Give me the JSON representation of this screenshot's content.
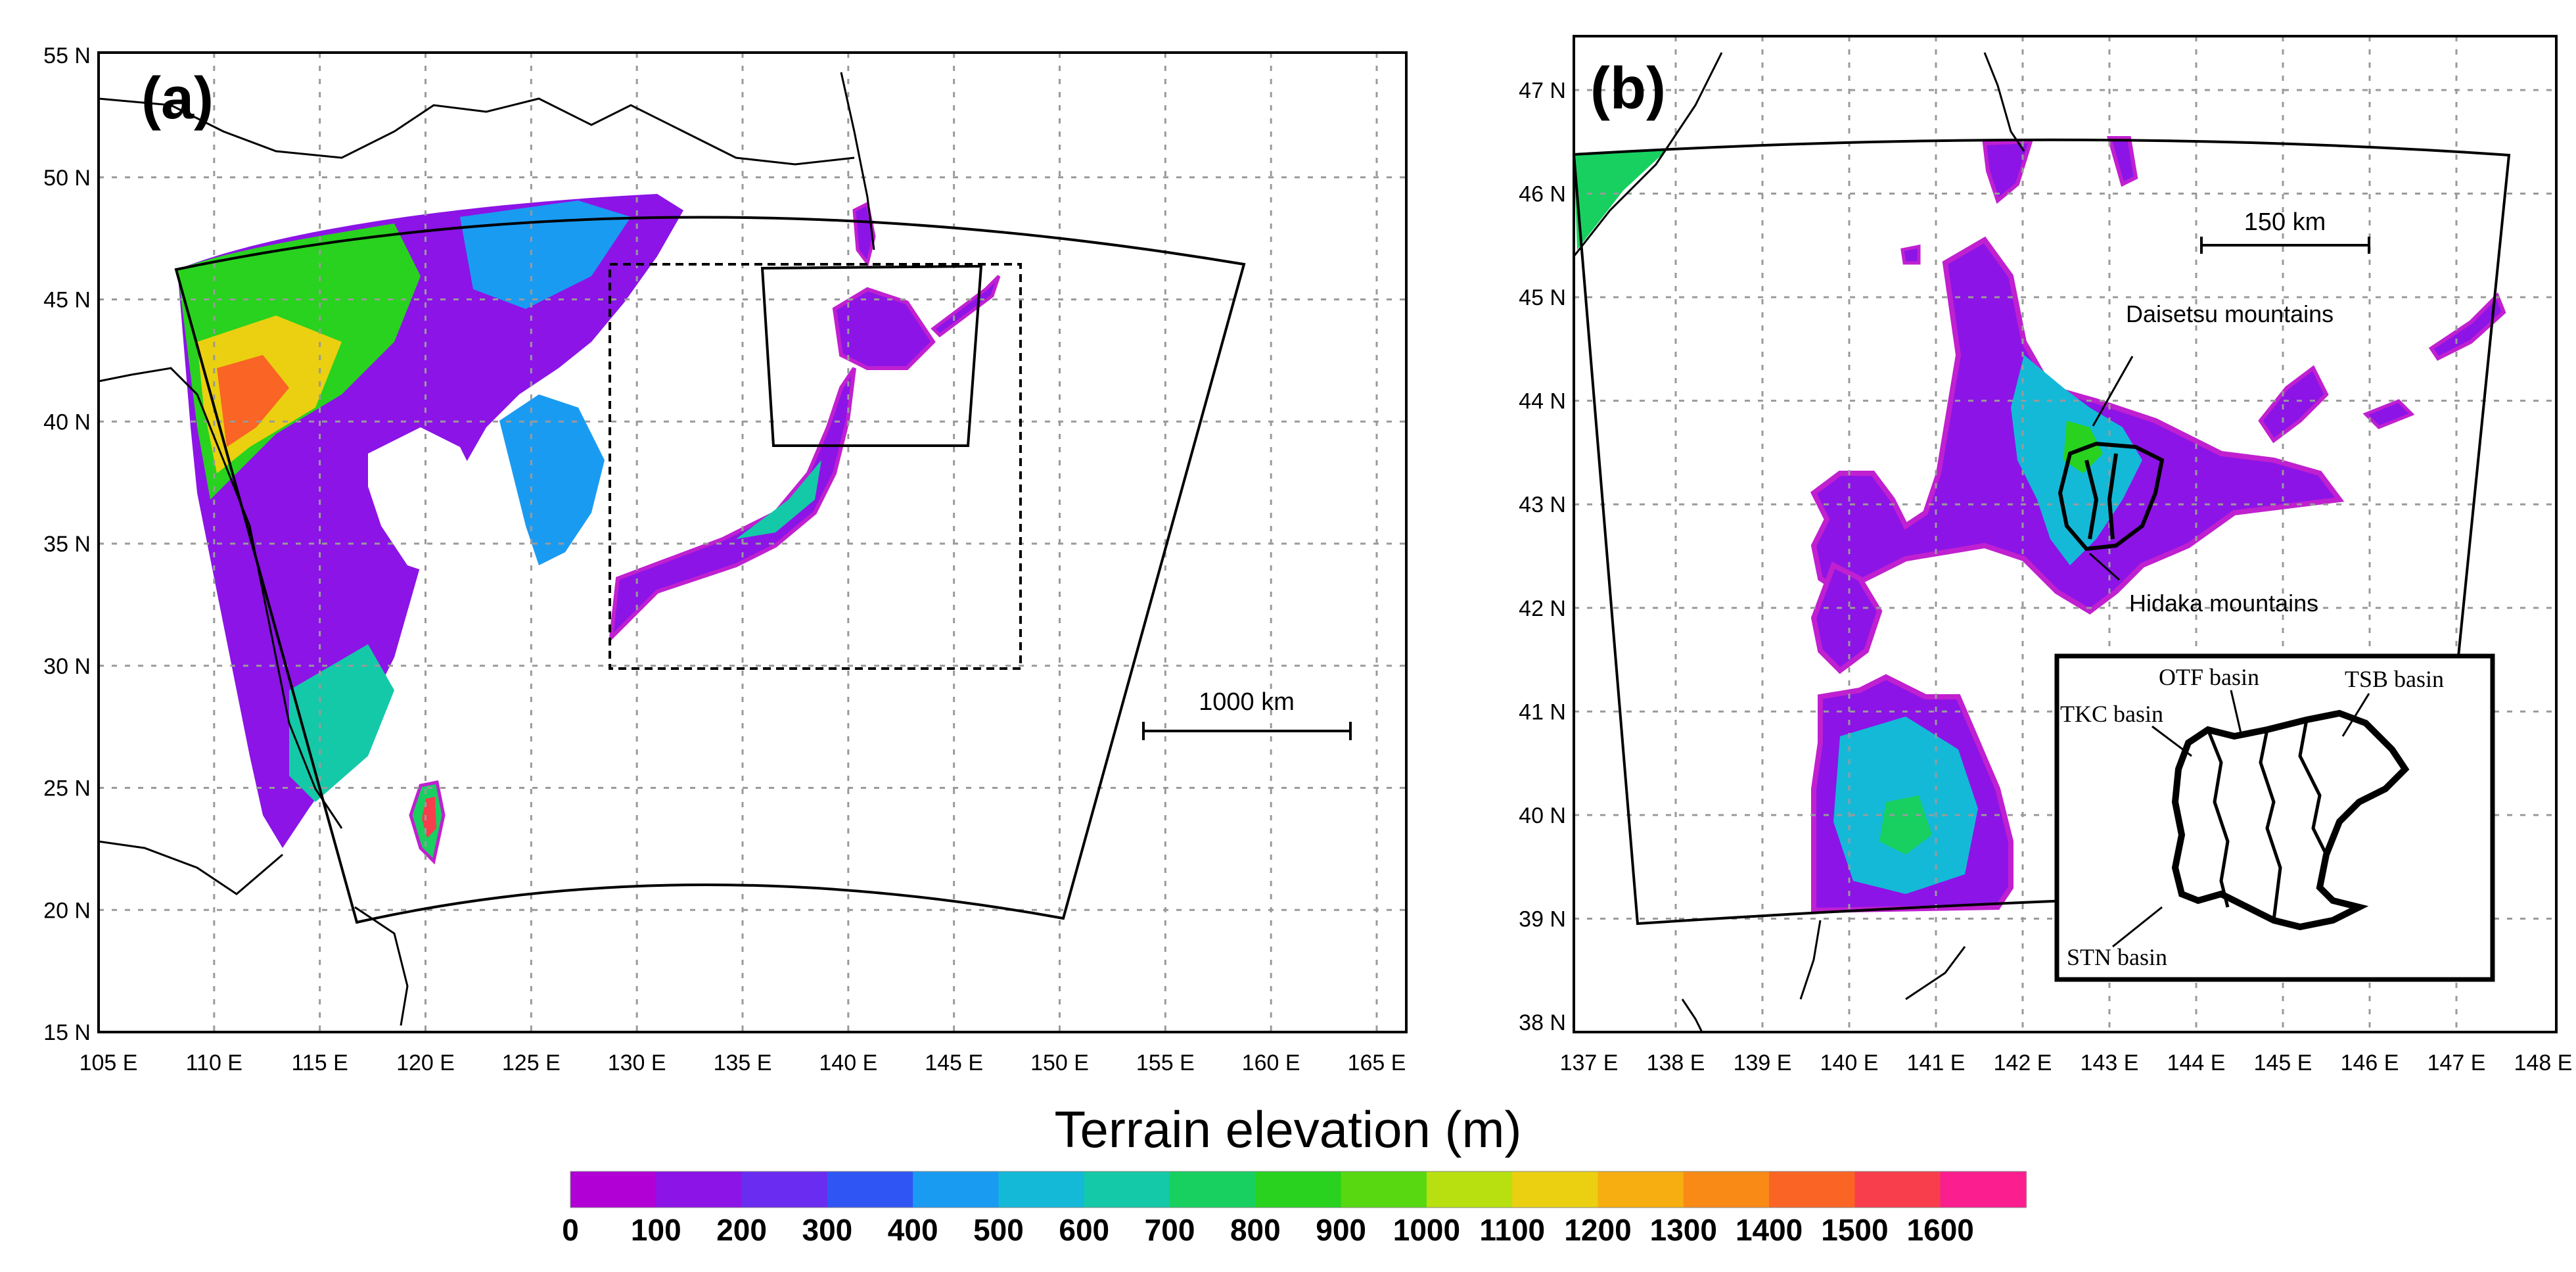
{
  "panel_a": {
    "label": "(a)",
    "lat_labels": [
      "55 N",
      "50 N",
      "45 N",
      "40 N",
      "35 N",
      "30 N",
      "25 N",
      "20 N",
      "15 N"
    ],
    "lon_labels": [
      "105 E",
      "110 E",
      "115 E",
      "120 E",
      "125 E",
      "130 E",
      "135 E",
      "140 E",
      "145 E",
      "150 E",
      "155 E",
      "160 E",
      "165 E"
    ],
    "scale_bar": "1000 km"
  },
  "panel_b": {
    "label": "(b)",
    "lat_labels": [
      "47 N",
      "46 N",
      "45 N",
      "44 N",
      "43 N",
      "42 N",
      "41 N",
      "40 N",
      "39 N",
      "38 N"
    ],
    "lon_labels": [
      "137 E",
      "138 E",
      "139 E",
      "140 E",
      "141 E",
      "142 E",
      "143 E",
      "144 E",
      "145 E",
      "146 E",
      "147 E",
      "148 E"
    ],
    "scale_bar": "150 km",
    "annotations": {
      "daisetsu": "Daisetsu mountains",
      "hidaka": "Hidaka mountains"
    },
    "inset": {
      "otf": "OTF basin",
      "tsb": "TSB basin",
      "tkc": "TKC basin",
      "stn": "STN basin"
    }
  },
  "colorbar": {
    "title": "Terrain elevation (m)",
    "tick_labels": [
      "0",
      "100",
      "200",
      "300",
      "400",
      "500",
      "600",
      "700",
      "800",
      "900",
      "1000",
      "1100",
      "1200",
      "1300",
      "1400",
      "1500",
      "1600"
    ],
    "colors": [
      "#b100d6",
      "#8c14e6",
      "#6a2cf0",
      "#2f55f5",
      "#1a9bf2",
      "#14b9d8",
      "#14c9a8",
      "#18d060",
      "#28d21e",
      "#58d810",
      "#b8e010",
      "#ead010",
      "#f6ae10",
      "#f98a16",
      "#fa6424",
      "#f83e4c",
      "#fa1e8e"
    ]
  }
}
